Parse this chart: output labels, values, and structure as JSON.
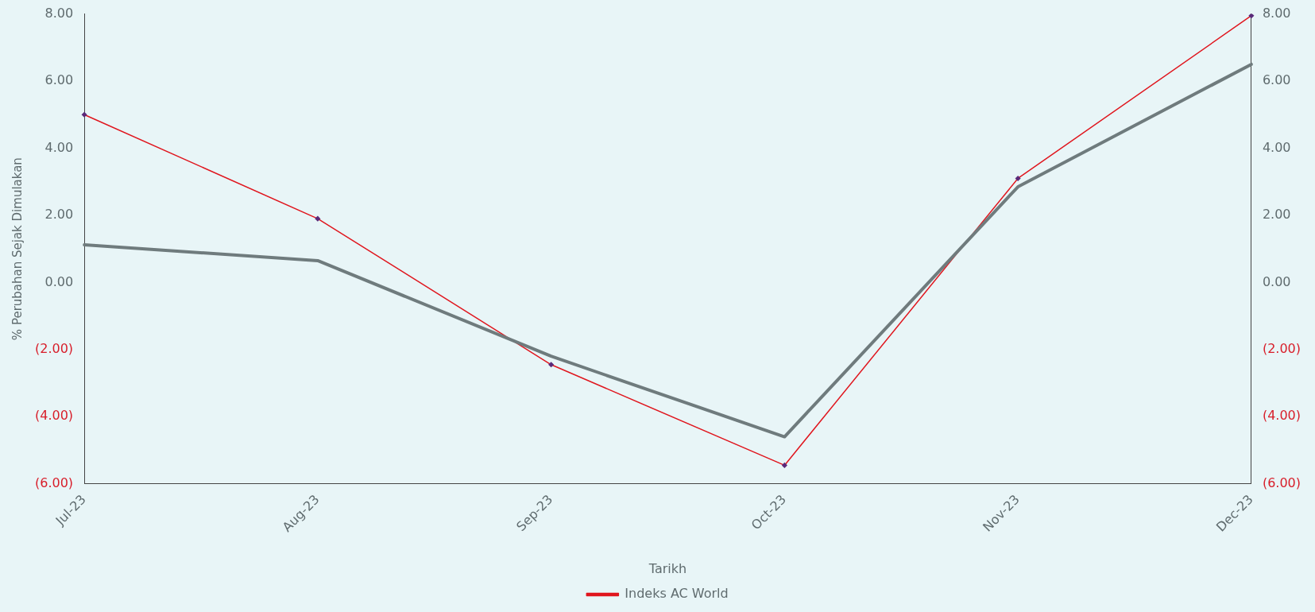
{
  "chart_data": {
    "type": "line",
    "xlabel": "Tarikh",
    "ylabel": "% Perubahan Sejak Dimulakan",
    "categories": [
      "Jul-23",
      "Aug-23",
      "Sep-23",
      "Oct-23",
      "Nov-23",
      "Dec-23"
    ],
    "series": [
      {
        "color": "#6f7b7d",
        "values": [
          1.12,
          0.65,
          -2.2,
          -4.6,
          2.85,
          6.5
        ],
        "marker": "none"
      },
      {
        "name": "Indeks AC World",
        "color": "#e0161e",
        "values": [
          5.0,
          1.9,
          -2.45,
          -5.45,
          3.1,
          7.95
        ],
        "marker": "diamond"
      }
    ],
    "ylim": [
      -6,
      8
    ],
    "yticks": [
      {
        "value": -6,
        "label": "(6.00)"
      },
      {
        "value": -4,
        "label": "(4.00)"
      },
      {
        "value": -2,
        "label": "(2.00)"
      },
      {
        "value": 0,
        "label": "0.00"
      },
      {
        "value": 2,
        "label": "2.00"
      },
      {
        "value": 4,
        "label": "4.00"
      },
      {
        "value": 6,
        "label": "6.00"
      },
      {
        "value": 8,
        "label": "8.00"
      }
    ],
    "y2lim": [
      -6,
      8
    ],
    "y2ticks": [
      {
        "value": -6,
        "label": "(6.00)"
      },
      {
        "value": -4,
        "label": "(4.00)"
      },
      {
        "value": -2,
        "label": "(2.00)"
      },
      {
        "value": 0,
        "label": "0.00"
      },
      {
        "value": 2,
        "label": "2.00"
      },
      {
        "value": 4,
        "label": "4.00"
      },
      {
        "value": 6,
        "label": "6.00"
      },
      {
        "value": 8,
        "label": "8.00"
      }
    ],
    "grid": false,
    "legend": "bottom"
  }
}
